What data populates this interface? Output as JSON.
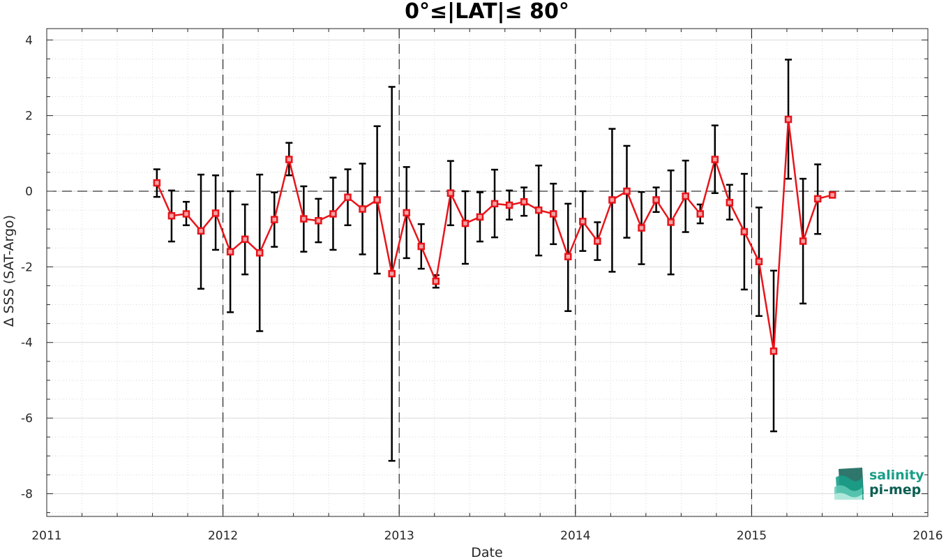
{
  "chart_data": {
    "type": "line",
    "title": "0°≤|LAT|≤ 80°",
    "xlabel": "Date",
    "ylabel": "∆ SSS (SAT-Argo)",
    "xlim": [
      2011,
      2016
    ],
    "ylim": [
      -8.6,
      4.3
    ],
    "x_ticks": [
      "2011",
      "2012",
      "2013",
      "2014",
      "2015",
      "2016"
    ],
    "y_ticks": [
      "4",
      "2",
      "0",
      "-2",
      "-4",
      "-6",
      "-8"
    ],
    "grid": true,
    "series": [
      {
        "values": [
          {
            "x": "2011-08",
            "y": 0.22,
            "lo": -0.15,
            "hi": 0.58
          },
          {
            "x": "2011-09",
            "y": -0.65,
            "lo": -1.33,
            "hi": 0.02
          },
          {
            "x": "2011-10",
            "y": -0.6,
            "lo": -0.9,
            "hi": -0.28
          },
          {
            "x": "2011-11",
            "y": -1.05,
            "lo": -2.58,
            "hi": 0.44
          },
          {
            "x": "2011-12",
            "y": -0.58,
            "lo": -1.55,
            "hi": 0.42
          },
          {
            "x": "2012-01",
            "y": -1.6,
            "lo": -3.2,
            "hi": 0.0
          },
          {
            "x": "2012-02",
            "y": -1.27,
            "lo": -2.2,
            "hi": -0.35
          },
          {
            "x": "2012-03",
            "y": -1.63,
            "lo": -3.7,
            "hi": 0.44
          },
          {
            "x": "2012-04",
            "y": -0.75,
            "lo": -1.47,
            "hi": -0.03
          },
          {
            "x": "2012-05",
            "y": 0.84,
            "lo": 0.42,
            "hi": 1.28
          },
          {
            "x": "2012-06",
            "y": -0.73,
            "lo": -1.6,
            "hi": 0.13
          },
          {
            "x": "2012-07",
            "y": -0.78,
            "lo": -1.35,
            "hi": -0.2
          },
          {
            "x": "2012-08",
            "y": -0.6,
            "lo": -1.55,
            "hi": 0.36
          },
          {
            "x": "2012-09",
            "y": -0.16,
            "lo": -0.9,
            "hi": 0.58
          },
          {
            "x": "2012-10",
            "y": -0.47,
            "lo": -1.67,
            "hi": 0.73
          },
          {
            "x": "2012-11",
            "y": -0.23,
            "lo": -2.18,
            "hi": 1.72
          },
          {
            "x": "2012-12",
            "y": -2.18,
            "lo": -7.13,
            "hi": 2.76
          },
          {
            "x": "2013-01",
            "y": -0.57,
            "lo": -1.77,
            "hi": 0.64
          },
          {
            "x": "2013-02",
            "y": -1.46,
            "lo": -2.05,
            "hi": -0.87
          },
          {
            "x": "2013-03",
            "y": -2.38,
            "lo": -2.55,
            "hi": -2.22
          },
          {
            "x": "2013-04",
            "y": -0.05,
            "lo": -0.9,
            "hi": 0.8
          },
          {
            "x": "2013-05",
            "y": -0.85,
            "lo": -1.92,
            "hi": 0.0
          },
          {
            "x": "2013-06",
            "y": -0.68,
            "lo": -1.33,
            "hi": -0.03
          },
          {
            "x": "2013-07",
            "y": -0.33,
            "lo": -1.22,
            "hi": 0.57
          },
          {
            "x": "2013-08",
            "y": -0.37,
            "lo": -0.75,
            "hi": 0.02
          },
          {
            "x": "2013-09",
            "y": -0.28,
            "lo": -0.65,
            "hi": 0.1
          },
          {
            "x": "2013-10",
            "y": -0.5,
            "lo": -1.7,
            "hi": 0.68
          },
          {
            "x": "2013-11",
            "y": -0.6,
            "lo": -1.4,
            "hi": 0.2
          },
          {
            "x": "2013-12",
            "y": -1.73,
            "lo": -3.17,
            "hi": -0.33
          },
          {
            "x": "2014-01",
            "y": -0.8,
            "lo": -1.58,
            "hi": 0.0
          },
          {
            "x": "2014-02",
            "y": -1.32,
            "lo": -1.82,
            "hi": -0.82
          },
          {
            "x": "2014-03",
            "y": -0.23,
            "lo": -2.13,
            "hi": 1.65
          },
          {
            "x": "2014-04",
            "y": 0.0,
            "lo": -1.23,
            "hi": 1.2
          },
          {
            "x": "2014-05",
            "y": -0.97,
            "lo": -1.93,
            "hi": -0.02
          },
          {
            "x": "2014-06",
            "y": -0.23,
            "lo": -0.55,
            "hi": 0.1
          },
          {
            "x": "2014-07",
            "y": -0.82,
            "lo": -2.2,
            "hi": 0.55
          },
          {
            "x": "2014-08",
            "y": -0.13,
            "lo": -1.08,
            "hi": 0.81
          },
          {
            "x": "2014-09",
            "y": -0.6,
            "lo": -0.85,
            "hi": -0.35
          },
          {
            "x": "2014-10",
            "y": 0.84,
            "lo": -0.05,
            "hi": 1.74
          },
          {
            "x": "2014-11",
            "y": -0.3,
            "lo": -0.75,
            "hi": 0.17
          },
          {
            "x": "2014-12",
            "y": -1.07,
            "lo": -2.6,
            "hi": 0.46
          },
          {
            "x": "2015-01",
            "y": -1.86,
            "lo": -3.3,
            "hi": -0.43
          },
          {
            "x": "2015-02",
            "y": -4.23,
            "lo": -6.35,
            "hi": -2.1
          },
          {
            "x": "2015-03",
            "y": 1.9,
            "lo": 0.33,
            "hi": 3.48
          },
          {
            "x": "2015-04",
            "y": -1.32,
            "lo": -2.97,
            "hi": 0.33
          },
          {
            "x": "2015-05",
            "y": -0.2,
            "lo": -1.13,
            "hi": 0.71
          },
          {
            "x": "2015-06",
            "y": -0.1,
            "lo": null,
            "hi": null
          }
        ]
      }
    ],
    "colors": {
      "line": "#e8141a",
      "marker": "#e8141a",
      "errorbar": "#000000",
      "zero_line": "#000000",
      "year_lines": "#000000",
      "grid": "#d9d9d9"
    }
  },
  "logo": {
    "line1": "salinity",
    "line2": "pi-mep",
    "color_teal": "#1a9e88",
    "color_dark": "#0b5e52"
  }
}
